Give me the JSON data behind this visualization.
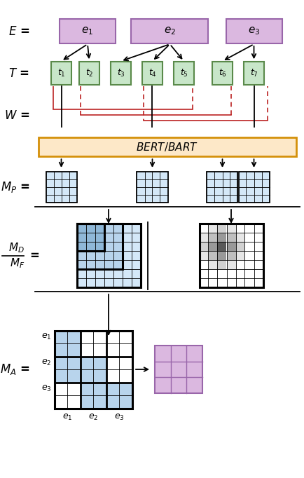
{
  "fig_width": 4.34,
  "fig_height": 6.82,
  "dpi": 100,
  "purple_fill": "#dbb8e0",
  "purple_border": "#9966aa",
  "green_fill": "#c8e6c9",
  "green_border": "#5a8a4a",
  "blue_fill": "#8fb8d8",
  "blue_light": "#b8d4ec",
  "blue_lighter": "#d4e8f8",
  "orange_fill": "#fde8c8",
  "orange_border": "#d4900a",
  "red_line": "#bb2222",
  "xlim": [
    0,
    8.68
  ],
  "ylim": [
    0,
    13.64
  ]
}
